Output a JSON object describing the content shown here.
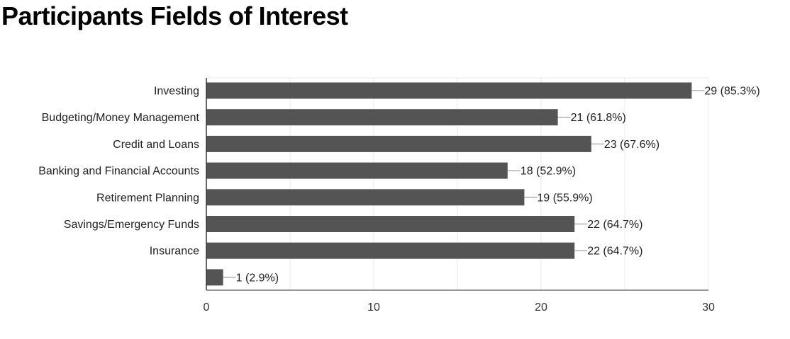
{
  "title": "Participants Fields of Interest",
  "colors": {
    "bar": "#545454",
    "grid": "#e8e8e8",
    "axis": "#333333",
    "leader": "#888888"
  },
  "chart_data": {
    "type": "bar",
    "orientation": "horizontal",
    "categories": [
      "Investing",
      "Budgeting/Money Management",
      "Credit and Loans",
      "Banking and Financial Accounts",
      "Retirement Planning",
      "Savings/Emergency Funds",
      "Insurance",
      ""
    ],
    "values": [
      29,
      21,
      23,
      18,
      19,
      22,
      22,
      1
    ],
    "data_labels": [
      "29 (85.3%)",
      "21 (61.8%)",
      "23 (67.6%)",
      "18 (52.9%)",
      "19 (55.9%)",
      "22 (64.7%)",
      "22 (64.7%)",
      "1 (2.9%)"
    ],
    "xlim": [
      0,
      30
    ],
    "xticks": [
      0,
      10,
      20,
      30
    ],
    "grid": true,
    "legend": "none"
  }
}
